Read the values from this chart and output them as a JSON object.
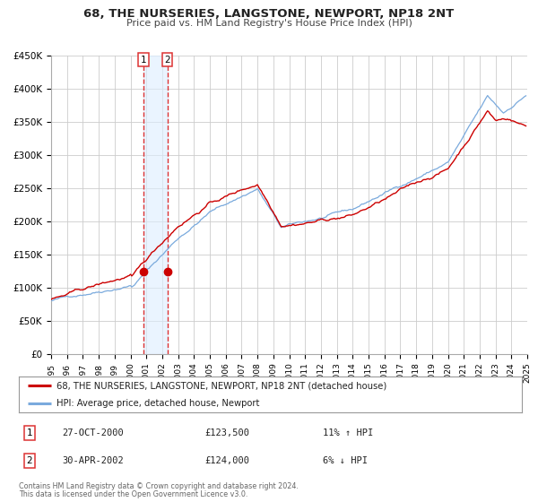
{
  "title": "68, THE NURSERIES, LANGSTONE, NEWPORT, NP18 2NT",
  "subtitle": "Price paid vs. HM Land Registry's House Price Index (HPI)",
  "legend_line1": "68, THE NURSERIES, LANGSTONE, NEWPORT, NP18 2NT (detached house)",
  "legend_line2": "HPI: Average price, detached house, Newport",
  "footer1": "Contains HM Land Registry data © Crown copyright and database right 2024.",
  "footer2": "This data is licensed under the Open Government Licence v3.0.",
  "transaction1_label": "1",
  "transaction1_date": "27-OCT-2000",
  "transaction1_price": "£123,500",
  "transaction1_hpi": "11% ↑ HPI",
  "transaction2_label": "2",
  "transaction2_date": "30-APR-2002",
  "transaction2_price": "£124,000",
  "transaction2_hpi": "6% ↓ HPI",
  "sale1_x": 2000.82,
  "sale1_y": 123500,
  "sale2_x": 2002.33,
  "sale2_y": 124000,
  "vline1_x": 2000.82,
  "vline2_x": 2002.33,
  "shade_x1": 2000.82,
  "shade_x2": 2002.33,
  "red_line_color": "#cc0000",
  "blue_line_color": "#7aaadd",
  "sale_dot_color": "#cc0000",
  "vline_color": "#dd3333",
  "shade_color": "#ddeeff",
  "grid_color": "#cccccc",
  "background_color": "#ffffff",
  "ylim": [
    0,
    450000
  ],
  "xlim_left": 1995,
  "xlim_right": 2025,
  "yticks": [
    0,
    50000,
    100000,
    150000,
    200000,
    250000,
    300000,
    350000,
    400000,
    450000
  ],
  "ytick_labels": [
    "£0",
    "£50K",
    "£100K",
    "£150K",
    "£200K",
    "£250K",
    "£300K",
    "£350K",
    "£400K",
    "£450K"
  ],
  "xticks": [
    1995,
    1996,
    1997,
    1998,
    1999,
    2000,
    2001,
    2002,
    2003,
    2004,
    2005,
    2006,
    2007,
    2008,
    2009,
    2010,
    2011,
    2012,
    2013,
    2014,
    2015,
    2016,
    2017,
    2018,
    2019,
    2020,
    2021,
    2022,
    2023,
    2024,
    2025
  ]
}
